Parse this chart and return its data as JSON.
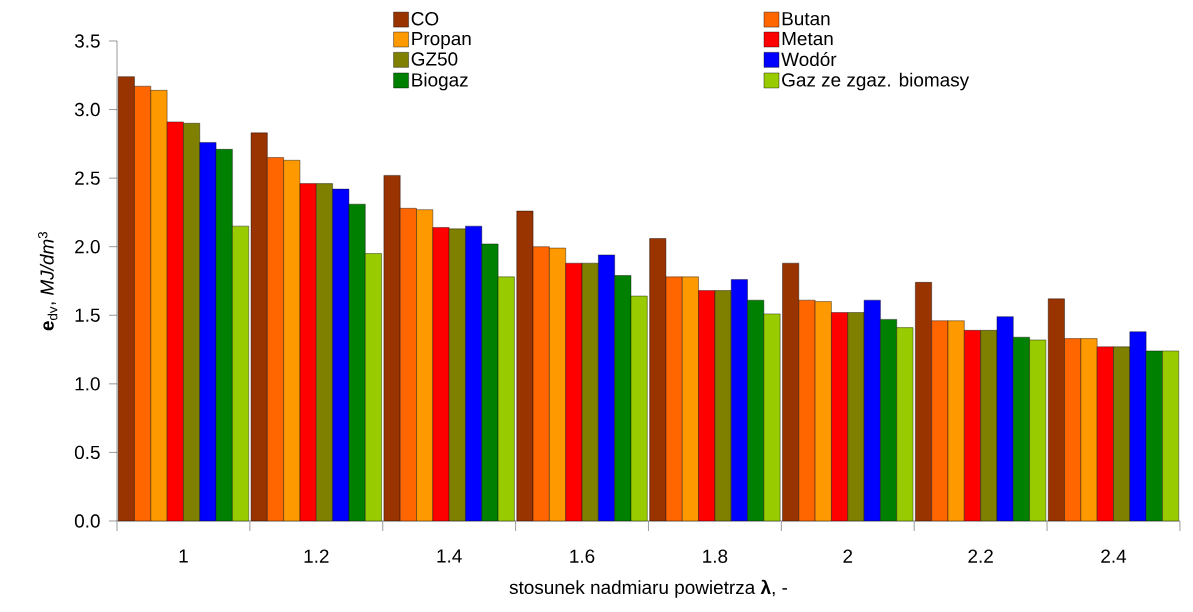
{
  "chart_data": {
    "type": "bar",
    "xlabel": "stosunek nadmiaru powietrza **λ**, -",
    "ylabel": "**e**$_{dv}$, *MJ/dm*$^{3}$",
    "categories": [
      "1",
      "1.2",
      "1.4",
      "1.6",
      "1.8",
      "2",
      "2.2",
      "2.4"
    ],
    "ylim": [
      0,
      3.5
    ],
    "yticks": [
      {
        "value": 0,
        "label": "0.0"
      },
      0.5,
      {
        "value": 1,
        "label": "1.0"
      },
      1.5,
      {
        "value": 2,
        "label": "2.0"
      },
      2.5,
      {
        "value": 3,
        "label": "3.0"
      },
      3.5
    ],
    "legend": "top",
    "series": [
      {
        "name": "CO",
        "color": "#993300",
        "values": [
          3.24,
          2.83,
          2.52,
          2.26,
          2.06,
          1.88,
          1.74,
          1.62
        ]
      },
      {
        "name": "Butan",
        "color": "#ff6600",
        "values": [
          3.17,
          2.65,
          2.28,
          2.0,
          1.78,
          1.61,
          1.46,
          1.33
        ]
      },
      {
        "name": "Propan",
        "color": "#ff9900",
        "values": [
          3.14,
          2.63,
          2.27,
          1.99,
          1.78,
          1.6,
          1.46,
          1.33
        ]
      },
      {
        "name": "Metan",
        "color": "#ff0000",
        "values": [
          2.91,
          2.46,
          2.14,
          1.88,
          1.68,
          1.52,
          1.39,
          1.27
        ]
      },
      {
        "name": "GZ50",
        "color": "#808000",
        "values": [
          2.9,
          2.46,
          2.13,
          1.88,
          1.68,
          1.52,
          1.39,
          1.27
        ]
      },
      {
        "name": "Wodór",
        "color": "#0000ff",
        "values": [
          2.76,
          2.42,
          2.15,
          1.94,
          1.76,
          1.61,
          1.49,
          1.38
        ]
      },
      {
        "name": "Biogaz",
        "color": "#008000",
        "values": [
          2.71,
          2.31,
          2.02,
          1.79,
          1.61,
          1.47,
          1.34,
          1.24
        ]
      },
      {
        "name": "Gaz ze zgaz. biomasy",
        "color": "#99cc00",
        "values": [
          2.15,
          1.95,
          1.78,
          1.64,
          1.51,
          1.41,
          1.32,
          1.24
        ]
      }
    ]
  }
}
